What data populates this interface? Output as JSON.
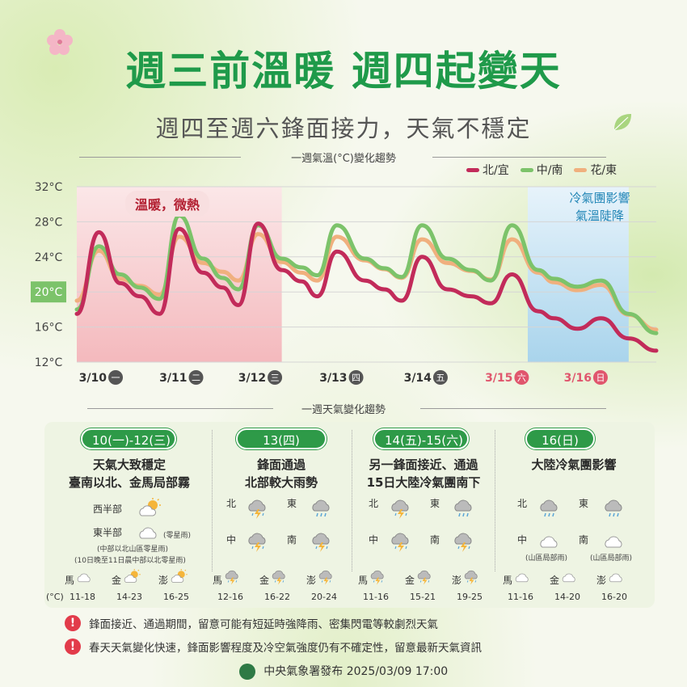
{
  "header": {
    "title": "週三前溫暖 週四起變天",
    "subtitle": "週四至週六鋒面接力，天氣不穩定"
  },
  "chart_section": {
    "heading": "一週氣溫(°C)變化趨勢"
  },
  "legend": [
    {
      "label": "北/宜",
      "color": "#c22b5a"
    },
    {
      "label": "中/南",
      "color": "#7cc36a"
    },
    {
      "label": "花/東",
      "color": "#f0b07e"
    }
  ],
  "tags": {
    "warm": "溫暖，微熱",
    "cold_line1": "冷氣團影響",
    "cold_line2": "氣溫陡降"
  },
  "chart_data": {
    "type": "line",
    "ylim": [
      12,
      32
    ],
    "yticks": [
      "32°C",
      "28°C",
      "24°C",
      "20°C",
      "16°C",
      "12°C"
    ],
    "ytick_values": [
      32,
      28,
      24,
      20,
      16,
      12
    ],
    "highlight_tick": "20°C",
    "x_labels": [
      {
        "date": "3/10",
        "day": "一",
        "weekend": false
      },
      {
        "date": "3/11",
        "day": "二",
        "weekend": false
      },
      {
        "date": "3/12",
        "day": "三",
        "weekend": false
      },
      {
        "date": "3/13",
        "day": "四",
        "weekend": false
      },
      {
        "date": "3/14",
        "day": "五",
        "weekend": false
      },
      {
        "date": "3/15",
        "day": "六",
        "weekend": true
      },
      {
        "date": "3/16",
        "day": "日",
        "weekend": true
      }
    ],
    "x_range": [
      0,
      7
    ],
    "shaded_ranges": [
      {
        "from": 0,
        "to": 2.6,
        "color": "#f6c9cc",
        "name": "warm"
      },
      {
        "from": 5.72,
        "to": 7,
        "color": "#b7dcef",
        "name": "cold"
      }
    ],
    "series": [
      {
        "name": "北/宜",
        "color": "#c22b5a",
        "points": [
          [
            0,
            17.5
          ],
          [
            0.28,
            26.8
          ],
          [
            0.55,
            21
          ],
          [
            0.8,
            19.5
          ],
          [
            1.05,
            17.5
          ],
          [
            1.3,
            27.2
          ],
          [
            1.6,
            22.2
          ],
          [
            1.85,
            20.5
          ],
          [
            2.05,
            18.5
          ],
          [
            2.3,
            27.8
          ],
          [
            2.6,
            22.5
          ],
          [
            2.85,
            21.2
          ],
          [
            3.05,
            19.5
          ],
          [
            3.3,
            24.6
          ],
          [
            3.65,
            21.3
          ],
          [
            3.9,
            20.3
          ],
          [
            4.12,
            19
          ],
          [
            4.38,
            24
          ],
          [
            4.7,
            20.3
          ],
          [
            5,
            19.5
          ],
          [
            5.25,
            18.7
          ],
          [
            5.52,
            22
          ],
          [
            5.85,
            17.8
          ],
          [
            6.05,
            17
          ],
          [
            6.35,
            15.8
          ],
          [
            6.65,
            17
          ],
          [
            7,
            14.7
          ],
          [
            7.35,
            13.3
          ]
        ]
      },
      {
        "name": "中/南",
        "color": "#7cc36a",
        "points": [
          [
            0,
            18
          ],
          [
            0.28,
            25.2
          ],
          [
            0.55,
            22
          ],
          [
            0.8,
            20.5
          ],
          [
            1.05,
            19.2
          ],
          [
            1.3,
            28.7
          ],
          [
            1.6,
            23.8
          ],
          [
            1.85,
            21.6
          ],
          [
            2.05,
            20.3
          ],
          [
            2.3,
            27.6
          ],
          [
            2.6,
            23.8
          ],
          [
            2.85,
            22.8
          ],
          [
            3.05,
            21.9
          ],
          [
            3.3,
            27.6
          ],
          [
            3.65,
            23.8
          ],
          [
            3.9,
            22.7
          ],
          [
            4.12,
            21.7
          ],
          [
            4.38,
            27.6
          ],
          [
            4.7,
            23.8
          ],
          [
            5,
            22.5
          ],
          [
            5.25,
            21.3
          ],
          [
            5.52,
            27.6
          ],
          [
            5.85,
            22.5
          ],
          [
            6.05,
            21.5
          ],
          [
            6.35,
            20.6
          ],
          [
            6.65,
            21.3
          ],
          [
            7,
            17.5
          ],
          [
            7.35,
            15.3
          ]
        ]
      },
      {
        "name": "花/東",
        "color": "#f0b07e",
        "points": [
          [
            0,
            19
          ],
          [
            0.28,
            24.7
          ],
          [
            0.55,
            21.5
          ],
          [
            0.8,
            20.7
          ],
          [
            1.05,
            19.7
          ],
          [
            1.3,
            26.3
          ],
          [
            1.6,
            23.3
          ],
          [
            1.85,
            22.3
          ],
          [
            2.05,
            21.3
          ],
          [
            2.3,
            26.6
          ],
          [
            2.6,
            23.4
          ],
          [
            2.85,
            22.2
          ],
          [
            3.05,
            21.3
          ],
          [
            3.3,
            26.3
          ],
          [
            3.65,
            23.6
          ],
          [
            3.9,
            22.6
          ],
          [
            4.12,
            21.6
          ],
          [
            4.38,
            26
          ],
          [
            4.7,
            23.3
          ],
          [
            5,
            22.4
          ],
          [
            5.25,
            21.4
          ],
          [
            5.52,
            26
          ],
          [
            5.85,
            22.2
          ],
          [
            6.05,
            21.1
          ],
          [
            6.35,
            20.2
          ],
          [
            6.65,
            20.8
          ],
          [
            7,
            17.4
          ],
          [
            7.35,
            15.7
          ]
        ]
      }
    ]
  },
  "weather_section": {
    "heading": "一週天氣變化趨勢"
  },
  "periods": [
    {
      "label": "10(一)-12(三)",
      "desc1": "天氣大致穩定",
      "desc2": "臺南以北、金馬局部霧",
      "west_label": "西半部",
      "east_label": "東半部",
      "east_note": "(零星雨)",
      "note1": "(中部以北山區零星雨)",
      "note2": "(10日晚至11日晨中部以北零星雨)",
      "islands": [
        {
          "name": "馬",
          "temp": "11-18",
          "icon": "cloud-icon"
        },
        {
          "name": "金",
          "temp": "14-23",
          "icon": "sun-cloud-icon"
        },
        {
          "name": "澎",
          "temp": "16-25",
          "icon": "sun-cloud-icon"
        }
      ],
      "unit": "(°C)"
    },
    {
      "label": "13(四)",
      "desc1": "鋒面通過",
      "desc2": "北部較大雨勢",
      "regions": [
        "北",
        "東",
        "中",
        "南"
      ],
      "islands": [
        {
          "name": "馬",
          "temp": "12-16",
          "icon": "thunder-icon"
        },
        {
          "name": "金",
          "temp": "16-22",
          "icon": "thunder-icon"
        },
        {
          "name": "澎",
          "temp": "20-24",
          "icon": "thunder-icon"
        }
      ]
    },
    {
      "label": "14(五)-15(六)",
      "desc1": "另一鋒面接近、通過",
      "desc2": "15日大陸冷氣團南下",
      "regions": [
        "北",
        "東",
        "中",
        "南"
      ],
      "islands": [
        {
          "name": "馬",
          "temp": "11-16",
          "icon": "thunder-icon"
        },
        {
          "name": "金",
          "temp": "15-21",
          "icon": "thunder-icon"
        },
        {
          "name": "澎",
          "temp": "19-25",
          "icon": "thunder-icon"
        }
      ]
    },
    {
      "label": "16(日)",
      "desc1": "大陸冷氣團影響",
      "regions": [
        "北",
        "東",
        "中",
        "南"
      ],
      "region_notes": [
        "(山區局部雨)",
        "(山區局部雨)"
      ],
      "islands": [
        {
          "name": "馬",
          "temp": "11-16",
          "icon": "cloud-icon"
        },
        {
          "name": "金",
          "temp": "14-20",
          "icon": "cloud-icon"
        },
        {
          "name": "澎",
          "temp": "16-20",
          "icon": "cloud-icon"
        }
      ]
    }
  ],
  "notes": [
    "鋒面接近、通過期間，留意可能有短延時強降雨、密集閃電等較劇烈天氣",
    "春天天氣變化快速，鋒面影響程度及冷空氣強度仍有不確定性，留意最新天氣資訊"
  ],
  "footer": {
    "text": "中央氣象署發布 2025/03/09 17:00"
  },
  "colors": {
    "accent": "#1f9a4a",
    "warm": "#b32032",
    "cold": "#2286b6",
    "alert": "#e23b4a"
  }
}
